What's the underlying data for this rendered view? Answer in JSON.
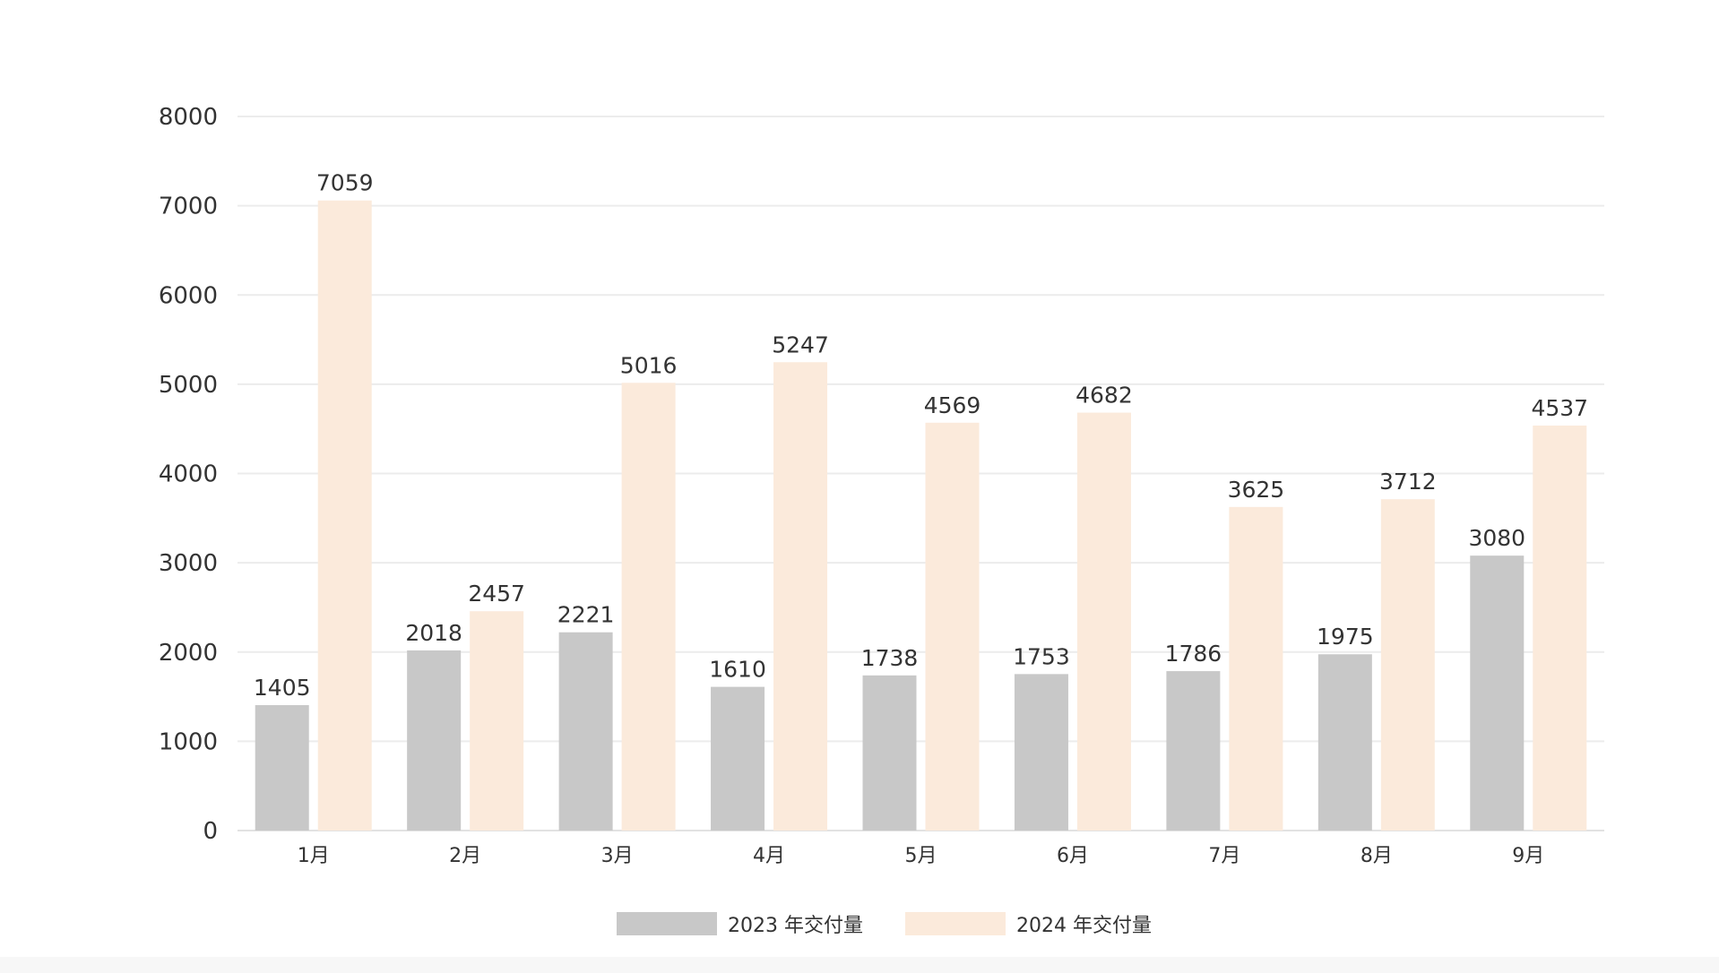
{
  "chart_data": {
    "type": "bar",
    "categories": [
      "1月",
      "2月",
      "3月",
      "4月",
      "5月",
      "6月",
      "7月",
      "8月",
      "9月"
    ],
    "series": [
      {
        "name": "2023 年交付量",
        "color": "#c8c8c8",
        "values": [
          1405,
          2018,
          2221,
          1610,
          1738,
          1753,
          1786,
          1975,
          3080
        ]
      },
      {
        "name": "2024 年交付量",
        "color": "#fbeadb",
        "values": [
          7059,
          2457,
          5016,
          5247,
          4569,
          4682,
          3625,
          3712,
          4537
        ]
      }
    ],
    "ylim": [
      0,
      8000
    ],
    "yticks": [
      0,
      1000,
      2000,
      3000,
      4000,
      5000,
      6000,
      7000,
      8000
    ],
    "grid": true,
    "legend_position": "bottom-center",
    "data_labels": true
  }
}
